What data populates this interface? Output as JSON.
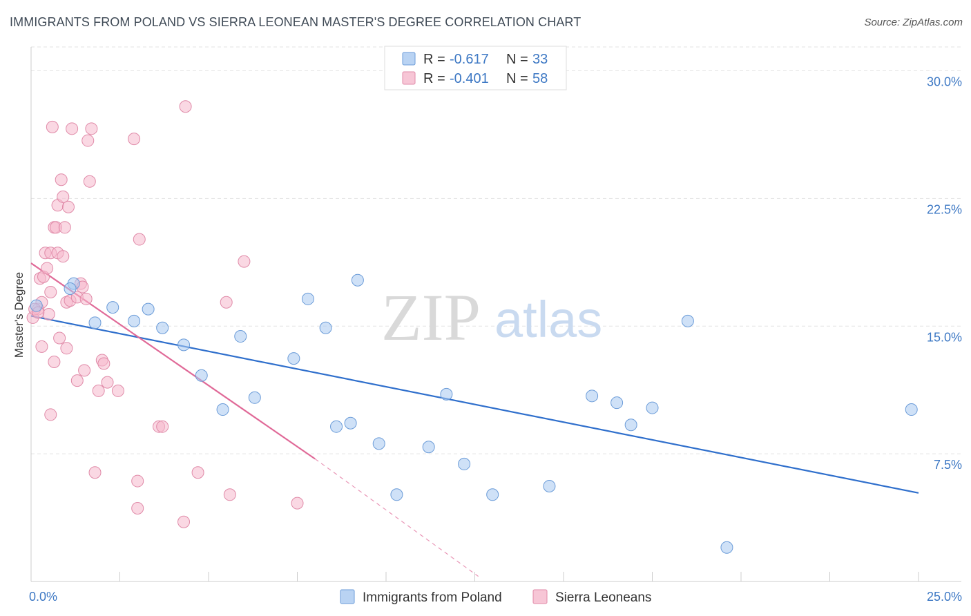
{
  "header": {
    "title": "IMMIGRANTS FROM POLAND VS SIERRA LEONEAN MASTER'S DEGREE CORRELATION CHART",
    "source": "Source: ZipAtlas.com"
  },
  "watermark": {
    "zip": "ZIP",
    "atlas": "atlas"
  },
  "legend": {
    "rows": [
      {
        "r_label": "R =",
        "r_value": "-0.617",
        "n_label": "N =",
        "n_value": "33",
        "color": "#a8c8f0"
      },
      {
        "r_label": "R =",
        "r_value": "-0.401",
        "n_label": "N =",
        "n_value": "58",
        "color": "#f5b8cc"
      }
    ]
  },
  "chart_data": {
    "type": "scatter",
    "xlabel": "",
    "ylabel": "Master's Degree",
    "xlim": [
      0,
      25
    ],
    "ylim": [
      0,
      31.4
    ],
    "x_ticks": [
      {
        "value": 0,
        "label": "0.0%"
      },
      {
        "value": 25,
        "label": "25.0%"
      }
    ],
    "y_ticks": [
      {
        "value": 7.5,
        "label": "7.5%"
      },
      {
        "value": 15,
        "label": "15.0%"
      },
      {
        "value": 22.5,
        "label": "22.5%"
      },
      {
        "value": 30,
        "label": "30.0%"
      }
    ],
    "grid": true,
    "series": [
      {
        "name": "Immigrants from Poland",
        "color": "#a8c8f0",
        "stroke": "#6a9bd8",
        "trend": {
          "x1": 0,
          "y1": 15.6,
          "x2": 25,
          "y2": 5.2,
          "color": "#2f6fcc"
        },
        "points": [
          [
            0.15,
            16.2
          ],
          [
            1.2,
            17.5
          ],
          [
            1.1,
            17.2
          ],
          [
            1.8,
            15.2
          ],
          [
            2.3,
            16.1
          ],
          [
            2.9,
            15.3
          ],
          [
            3.3,
            16.0
          ],
          [
            3.7,
            14.9
          ],
          [
            4.3,
            13.9
          ],
          [
            4.8,
            12.1
          ],
          [
            5.4,
            10.1
          ],
          [
            5.9,
            14.4
          ],
          [
            6.3,
            10.8
          ],
          [
            7.4,
            13.1
          ],
          [
            7.8,
            16.6
          ],
          [
            8.3,
            14.9
          ],
          [
            8.6,
            9.1
          ],
          [
            9.0,
            9.3
          ],
          [
            9.2,
            17.7
          ],
          [
            9.8,
            8.1
          ],
          [
            10.3,
            5.1
          ],
          [
            11.2,
            7.9
          ],
          [
            11.7,
            11.0
          ],
          [
            12.2,
            6.9
          ],
          [
            13.0,
            5.1
          ],
          [
            14.6,
            5.6
          ],
          [
            15.8,
            10.9
          ],
          [
            16.5,
            10.5
          ],
          [
            16.9,
            9.2
          ],
          [
            17.5,
            10.2
          ],
          [
            18.5,
            15.3
          ],
          [
            19.6,
            2.0
          ],
          [
            24.8,
            10.1
          ]
        ]
      },
      {
        "name": "Sierra Leoneans",
        "color": "#f5b8cc",
        "stroke": "#e08aa8",
        "trend": {
          "x1": 0,
          "y1": 18.7,
          "x2": 8.0,
          "y2": 7.2,
          "color": "#e06a98",
          "dash_x2": 12.6,
          "dash_y2": 0.3
        },
        "points": [
          [
            0.05,
            15.5
          ],
          [
            0.2,
            16.0
          ],
          [
            0.3,
            16.4
          ],
          [
            0.25,
            17.8
          ],
          [
            0.35,
            17.9
          ],
          [
            0.45,
            18.4
          ],
          [
            0.4,
            19.3
          ],
          [
            0.55,
            19.3
          ],
          [
            0.3,
            13.8
          ],
          [
            0.5,
            15.7
          ],
          [
            0.55,
            9.8
          ],
          [
            0.6,
            26.7
          ],
          [
            0.55,
            17.0
          ],
          [
            0.65,
            20.8
          ],
          [
            0.7,
            20.8
          ],
          [
            0.65,
            12.9
          ],
          [
            0.75,
            19.3
          ],
          [
            0.75,
            22.1
          ],
          [
            0.8,
            14.3
          ],
          [
            0.85,
            23.6
          ],
          [
            0.9,
            19.1
          ],
          [
            0.9,
            22.6
          ],
          [
            0.95,
            20.8
          ],
          [
            1.0,
            16.4
          ],
          [
            1.0,
            13.7
          ],
          [
            1.05,
            22.0
          ],
          [
            1.1,
            16.5
          ],
          [
            1.15,
            26.6
          ],
          [
            1.3,
            11.8
          ],
          [
            1.3,
            16.7
          ],
          [
            1.4,
            17.5
          ],
          [
            1.45,
            17.3
          ],
          [
            1.5,
            12.4
          ],
          [
            1.55,
            16.6
          ],
          [
            1.6,
            25.9
          ],
          [
            1.65,
            23.5
          ],
          [
            1.7,
            26.6
          ],
          [
            1.8,
            6.4
          ],
          [
            1.9,
            11.2
          ],
          [
            2.0,
            13.0
          ],
          [
            2.05,
            12.8
          ],
          [
            2.15,
            11.7
          ],
          [
            2.45,
            11.2
          ],
          [
            2.9,
            26.0
          ],
          [
            3.0,
            4.3
          ],
          [
            3.0,
            5.9
          ],
          [
            3.05,
            20.1
          ],
          [
            3.6,
            9.1
          ],
          [
            3.7,
            9.1
          ],
          [
            4.3,
            3.5
          ],
          [
            4.35,
            27.9
          ],
          [
            4.7,
            6.4
          ],
          [
            5.5,
            16.4
          ],
          [
            5.6,
            5.1
          ],
          [
            6.0,
            18.8
          ],
          [
            7.5,
            4.6
          ],
          [
            0.1,
            16.0
          ],
          [
            0.2,
            15.8
          ]
        ]
      }
    ]
  }
}
